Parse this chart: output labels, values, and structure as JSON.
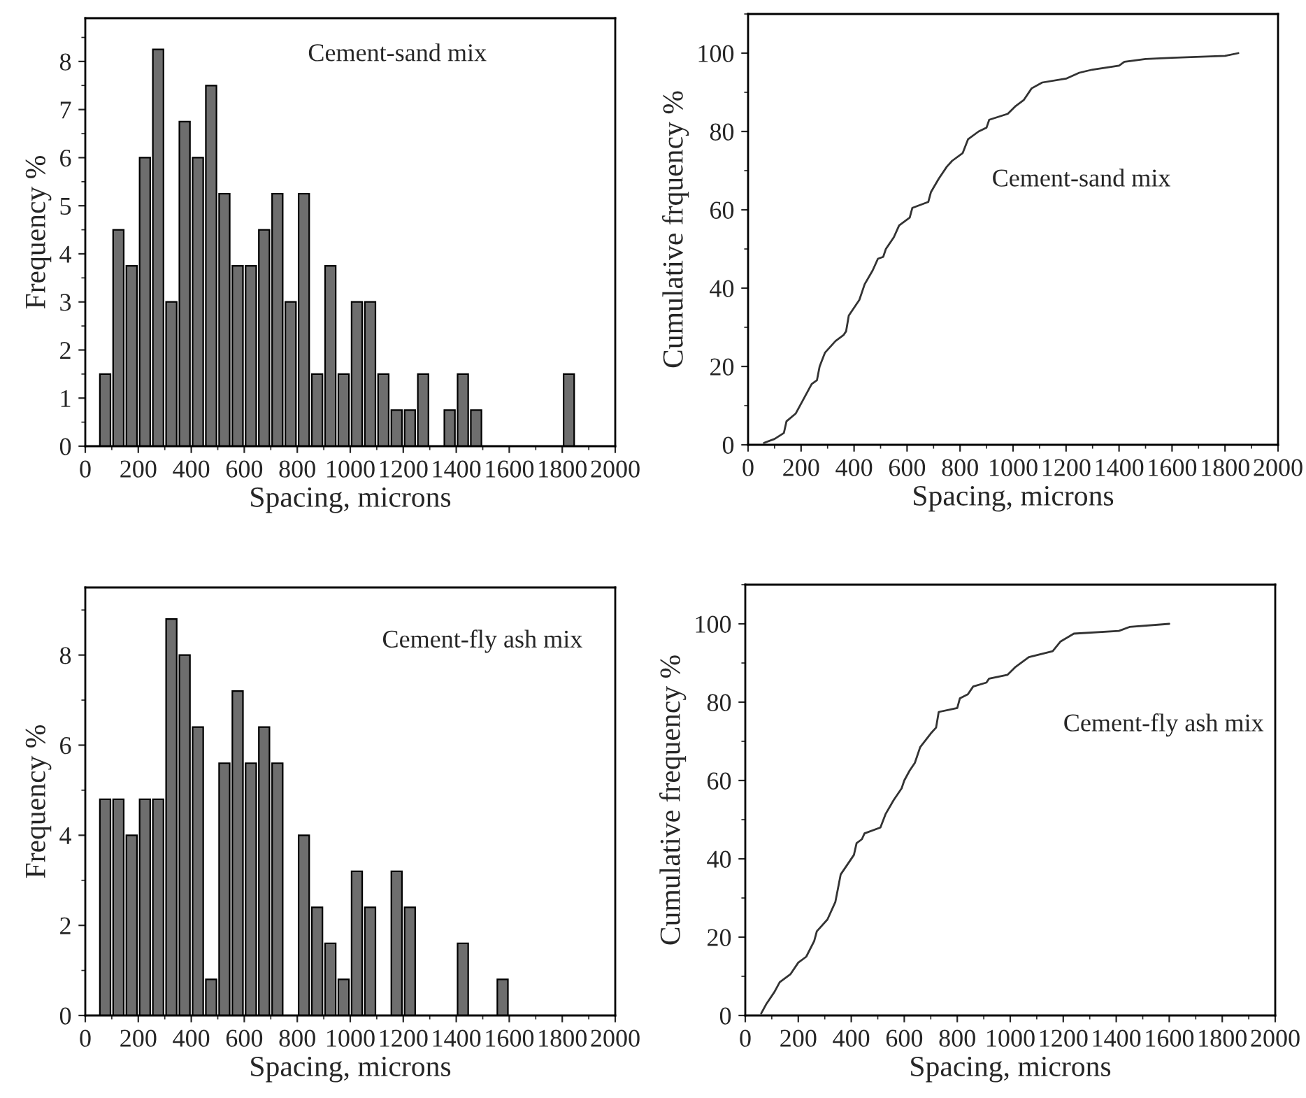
{
  "chart_data": [
    {
      "type": "histogram",
      "xlabel": "Spacing, microns",
      "ylabel": "Frequency %",
      "annotations": [
        "Cement-sand mix"
      ],
      "color": "#6e6e6e",
      "bins": [
        50,
        100,
        150,
        200,
        250,
        300,
        350,
        400,
        450,
        500,
        550,
        600,
        650,
        700,
        750,
        800,
        850,
        900,
        950,
        1000,
        1050,
        1100,
        1150,
        1200,
        1250,
        1300,
        1350,
        1400,
        1450,
        1500,
        1550,
        1600,
        1650,
        1700,
        1750,
        1800,
        1850
      ],
      "values": [
        1.5,
        4.5,
        3.75,
        6,
        8.25,
        3,
        6.75,
        6,
        7.5,
        5.25,
        3.75,
        3.75,
        4.5,
        5.25,
        3,
        5.25,
        1.5,
        3.75,
        1.5,
        3,
        3,
        1.5,
        0.75,
        0.75,
        1.5,
        0,
        0.75,
        1.5,
        0.75,
        0,
        0,
        0,
        0,
        0,
        0,
        1.5
      ],
      "xlim": [
        0,
        2000
      ],
      "xticks": [
        0,
        200,
        400,
        600,
        800,
        1000,
        1200,
        1400,
        1600,
        1800,
        2000
      ],
      "ylim": [
        0,
        8.9
      ],
      "yticks": [
        0,
        1,
        2,
        3,
        4,
        5,
        6,
        7,
        8
      ]
    },
    {
      "type": "line",
      "xlabel": "Spacing, microns",
      "ylabel": "Cumulative frquency %",
      "annotations": [
        "Cement-sand mix"
      ],
      "color": "#333333",
      "x": [
        60,
        100,
        135,
        145,
        180,
        200,
        220,
        240,
        260,
        270,
        290,
        330,
        360,
        370,
        380,
        420,
        440,
        470,
        490,
        510,
        520,
        550,
        570,
        610,
        620,
        680,
        690,
        720,
        750,
        770,
        810,
        830,
        870,
        900,
        910,
        980,
        1010,
        1040,
        1070,
        1110,
        1200,
        1250,
        1300,
        1400,
        1420,
        1500,
        1600,
        1800,
        1850
      ],
      "values": [
        0.5,
        1.5,
        3,
        6,
        8,
        10.5,
        13,
        15.5,
        16.5,
        20,
        23.5,
        26.5,
        28,
        29,
        33,
        37,
        41,
        44.5,
        47.5,
        48,
        50,
        53,
        56,
        58,
        60.5,
        62,
        64.5,
        68,
        71,
        72.5,
        74.5,
        78,
        80,
        81,
        83,
        84.5,
        86.5,
        88,
        91,
        92.5,
        93.5,
        95,
        95.8,
        96.8,
        97.8,
        98.5,
        98.8,
        99.3,
        100
      ],
      "xlim": [
        0,
        2000
      ],
      "xticks": [
        0,
        200,
        400,
        600,
        800,
        1000,
        1200,
        1400,
        1600,
        1800,
        2000
      ],
      "ylim": [
        0,
        110
      ],
      "yticks": [
        0,
        20,
        40,
        60,
        80,
        100
      ]
    },
    {
      "type": "histogram",
      "xlabel": "Spacing, microns",
      "ylabel": "Frequency %",
      "annotations": [
        "Cement-fly ash mix"
      ],
      "color": "#6e6e6e",
      "bins": [
        50,
        100,
        150,
        200,
        250,
        300,
        350,
        400,
        450,
        500,
        550,
        600,
        650,
        700,
        750,
        800,
        850,
        900,
        950,
        1000,
        1050,
        1100,
        1150,
        1200,
        1250,
        1300,
        1350,
        1400,
        1450,
        1500,
        1550,
        1600
      ],
      "values": [
        4.8,
        4.8,
        4.0,
        4.8,
        4.8,
        8.8,
        8.0,
        6.4,
        0.8,
        5.6,
        7.2,
        5.6,
        6.4,
        5.6,
        0,
        4.0,
        2.4,
        1.6,
        0.8,
        3.2,
        2.4,
        0,
        3.2,
        2.4,
        0,
        0,
        0,
        1.6,
        0,
        0,
        0.8
      ],
      "xlim": [
        0,
        2000
      ],
      "xticks": [
        0,
        200,
        400,
        600,
        800,
        1000,
        1200,
        1400,
        1600,
        1800,
        2000
      ],
      "ylim": [
        0,
        9.5
      ],
      "yticks": [
        0,
        2,
        4,
        6,
        8
      ]
    },
    {
      "type": "line",
      "xlabel": "Spacing, microns",
      "ylabel": "Cumulative frequency %",
      "annotations": [
        "Cement-fly ash mix"
      ],
      "color": "#333333",
      "x": [
        60,
        80,
        110,
        130,
        170,
        200,
        230,
        260,
        270,
        310,
        340,
        350,
        360,
        390,
        410,
        420,
        440,
        450,
        510,
        530,
        560,
        590,
        600,
        620,
        640,
        660,
        700,
        720,
        730,
        800,
        810,
        840,
        860,
        910,
        920,
        990,
        1020,
        1070,
        1160,
        1190,
        1240,
        1410,
        1450,
        1600
      ],
      "values": [
        0.5,
        3,
        6,
        8.5,
        10.5,
        13.5,
        15,
        19,
        21.5,
        24.5,
        29,
        32.5,
        36,
        39,
        41,
        44,
        45,
        46.5,
        48,
        51.5,
        55,
        58,
        60,
        62.5,
        64.5,
        68.5,
        72,
        73.5,
        77.5,
        78.5,
        81,
        82,
        84,
        85,
        86,
        87,
        89,
        91.5,
        93,
        95.5,
        97.5,
        98.2,
        99.2,
        100
      ],
      "xlim": [
        0,
        2000
      ],
      "xticks": [
        0,
        200,
        400,
        600,
        800,
        1000,
        1200,
        1400,
        1600,
        1800,
        2000
      ],
      "ylim": [
        0,
        110
      ],
      "yticks": [
        0,
        20,
        40,
        60,
        80,
        100
      ]
    }
  ]
}
